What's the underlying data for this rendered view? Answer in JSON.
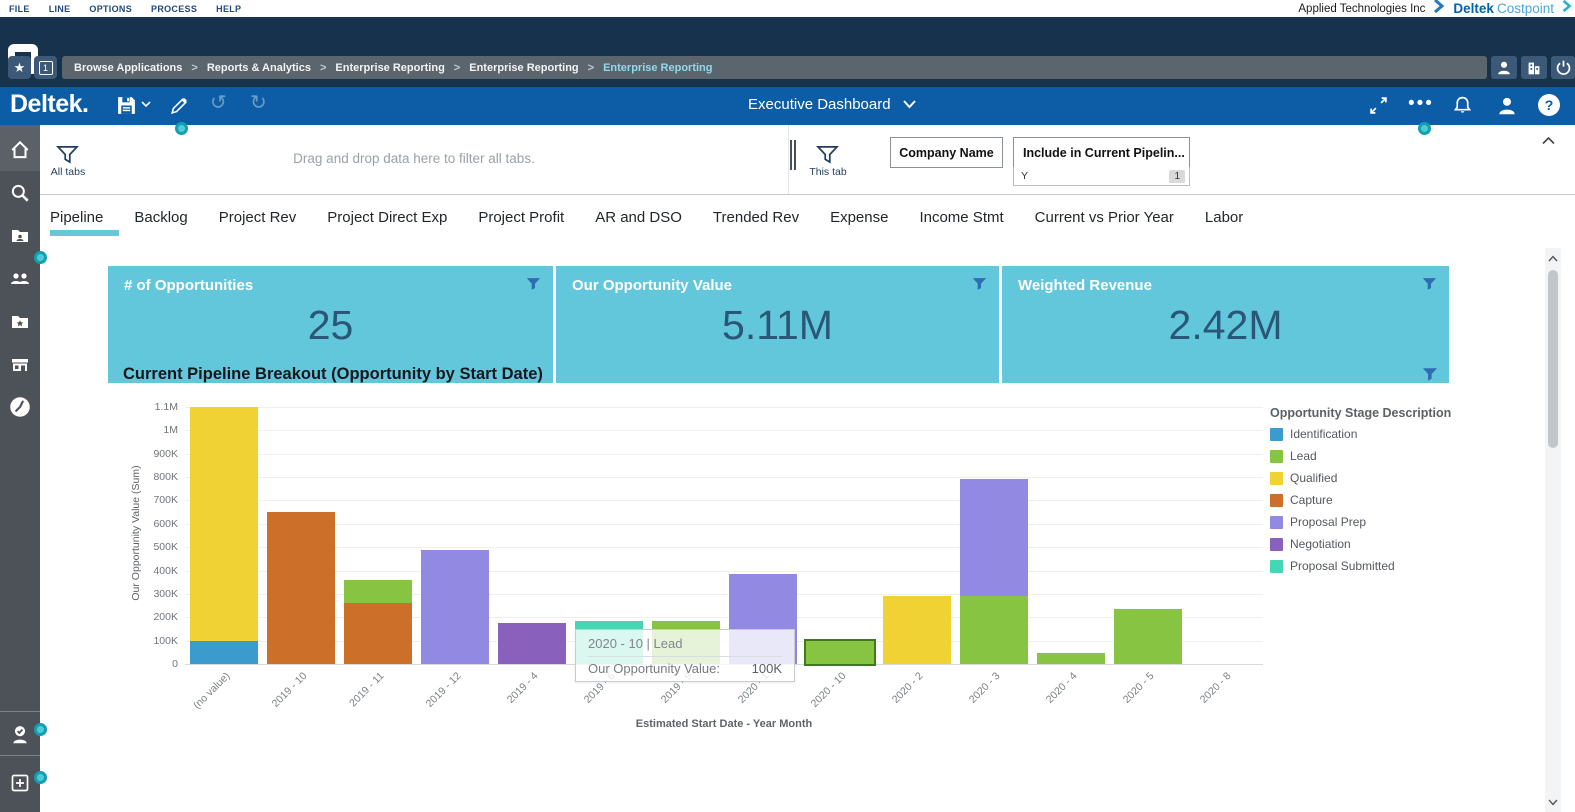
{
  "menubar": {
    "items": [
      "FILE",
      "LINE",
      "OPTIONS",
      "PROCESS",
      "HELP"
    ],
    "company_name": "Applied Technologies Inc",
    "brand_primary": "Deltek",
    "brand_secondary": "Costpoint"
  },
  "breadcrumb": {
    "items": [
      "Browse Applications",
      "Reports & Analytics",
      "Enterprise Reporting",
      "Enterprise Reporting",
      "Enterprise Reporting"
    ],
    "separator": ">",
    "window_number": "1"
  },
  "toolbar": {
    "logo": "Deltek.",
    "dashboard_selector": "Executive Dashboard"
  },
  "filter_bar": {
    "all_tabs_label": "All tabs",
    "all_tabs_placeholder": "Drag and drop data here to filter all tabs.",
    "this_tab_label": "This tab",
    "filter_chips": [
      {
        "label": "Company Name"
      },
      {
        "label": "Include in Current Pipelin...",
        "value": "Y",
        "badge": "1"
      }
    ]
  },
  "tab_bar": {
    "tabs": [
      "Pipeline",
      "Backlog",
      "Project Rev",
      "Project Direct Exp",
      "Project Profit",
      "AR and DSO",
      "Trended Rev",
      "Expense",
      "Income Stmt",
      "Current vs Prior Year",
      "Labor"
    ],
    "active_tab": "Pipeline"
  },
  "kpi_cards": [
    {
      "title": "# of Opportunities",
      "value": "25"
    },
    {
      "title": "Our Opportunity Value",
      "value": "5.11M"
    },
    {
      "title": "Weighted Revenue",
      "value": "2.42M"
    }
  ],
  "chart_data": {
    "type": "bar",
    "stacked": true,
    "title": "Current Pipeline Breakout (Opportunity by Start Date)",
    "xlabel": "Estimated Start Date - Year Month",
    "ylabel": "Our Opportunity Value (Sum)",
    "ylim": [
      0,
      1100000
    ],
    "grid": "horizontal",
    "legend_position": "right",
    "legend_title": "Opportunity Stage Description",
    "yticks": [
      {
        "value": 0,
        "label": "0"
      },
      {
        "value": 100000,
        "label": "100K"
      },
      {
        "value": 200000,
        "label": "200K"
      },
      {
        "value": 300000,
        "label": "300K"
      },
      {
        "value": 400000,
        "label": "400K"
      },
      {
        "value": 500000,
        "label": "500K"
      },
      {
        "value": 600000,
        "label": "600K"
      },
      {
        "value": 700000,
        "label": "700K"
      },
      {
        "value": 800000,
        "label": "800K"
      },
      {
        "value": 900000,
        "label": "900K"
      },
      {
        "value": 1000000,
        "label": "1M"
      },
      {
        "value": 1100000,
        "label": "1.1M"
      }
    ],
    "series": [
      {
        "name": "Identification",
        "color": "#3b9bce"
      },
      {
        "name": "Lead",
        "color": "#86c441"
      },
      {
        "name": "Qualified",
        "color": "#f1d235"
      },
      {
        "name": "Capture",
        "color": "#cc7029"
      },
      {
        "name": "Proposal Prep",
        "color": "#928ae2"
      },
      {
        "name": "Negotiation",
        "color": "#8a60bd"
      },
      {
        "name": "Proposal Submitted",
        "color": "#46d6b3"
      }
    ],
    "categories": [
      "(no value)",
      "2019 - 10",
      "2019 - 11",
      "2019 - 12",
      "2019 - 4",
      "2019 - 6",
      "2019 - 9",
      "2020 - 1",
      "2020 - 10",
      "2020 - 2",
      "2020 - 3",
      "2020 - 4",
      "2020 - 5",
      "2020 - 8"
    ],
    "bars": [
      {
        "category": "(no value)",
        "segments": [
          {
            "stage": "Identification",
            "value": 100000
          },
          {
            "stage": "Qualified",
            "value": 1000000
          }
        ]
      },
      {
        "category": "2019 - 10",
        "segments": [
          {
            "stage": "Capture",
            "value": 650000
          }
        ]
      },
      {
        "category": "2019 - 11",
        "segments": [
          {
            "stage": "Capture",
            "value": 260000
          },
          {
            "stage": "Lead",
            "value": 100000
          }
        ]
      },
      {
        "category": "2019 - 12",
        "segments": [
          {
            "stage": "Proposal Prep",
            "value": 490000
          }
        ]
      },
      {
        "category": "2019 - 4",
        "segments": [
          {
            "stage": "Negotiation",
            "value": 175000
          }
        ]
      },
      {
        "category": "2019 - 6",
        "segments": [
          {
            "stage": "Proposal Submitted",
            "value": 185000
          }
        ]
      },
      {
        "category": "2019 - 9",
        "segments": [
          {
            "stage": "Lead",
            "value": 185000
          }
        ]
      },
      {
        "category": "2020 - 1",
        "segments": [
          {
            "stage": "Proposal Prep",
            "value": 385000
          }
        ]
      },
      {
        "category": "2020 - 10",
        "segments": [
          {
            "stage": "Lead",
            "value": 100000
          }
        ],
        "highlighted": true
      },
      {
        "category": "2020 - 2",
        "segments": [
          {
            "stage": "Qualified",
            "value": 290000
          }
        ]
      },
      {
        "category": "2020 - 3",
        "segments": [
          {
            "stage": "Lead",
            "value": 290000
          },
          {
            "stage": "Proposal Prep",
            "value": 500000
          }
        ]
      },
      {
        "category": "2020 - 4",
        "segments": [
          {
            "stage": "Lead",
            "value": 45000
          }
        ]
      },
      {
        "category": "2020 - 5",
        "segments": [
          {
            "stage": "Lead",
            "value": 235000
          }
        ]
      },
      {
        "category": "2020 - 8",
        "segments": []
      }
    ],
    "tooltip": {
      "title": "2020 - 10 | Lead",
      "label": "Our Opportunity Value:",
      "value": "100K"
    }
  },
  "colors": {
    "topbar_navy": "#16324d",
    "toolbar_blue": "#0c5da5",
    "accent_teal": "#63c7db",
    "kpi_value_navy": "#2a5777",
    "sidebar_gray": "#4c5257",
    "filter_icon_blue": "#2e6db4",
    "highlight_border_green": "#3f7a1d",
    "handle_teal": "#12a0b0"
  }
}
